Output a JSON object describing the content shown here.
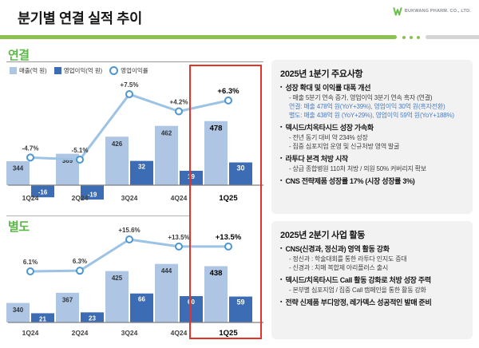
{
  "header": {
    "title": "분기별 연결 실적 추이",
    "logo_text": "BUKWANG PHARM. CO., LTD."
  },
  "colors": {
    "accent_green": "#8cc152",
    "section_green": "#5cb848",
    "revenue_bar": "#aec6e4",
    "profit_bar": "#3c6cb4",
    "margin_line": "#9cc2e5",
    "marker_ring": "#4d96d2",
    "highlight_red": "#e5332a",
    "panel_bg": "#f2f2f2",
    "blue_text": "#4a7cc7"
  },
  "legend": {
    "revenue": "매출(억 원)",
    "profit": "영업이익(억 원)",
    "margin": "영업이익률"
  },
  "chart_data": [
    {
      "type": "bar+line",
      "section_label": "연결",
      "categories": [
        "1Q24",
        "2Q24",
        "3Q24",
        "4Q24",
        "1Q25"
      ],
      "series": [
        {
          "name": "매출(억 원)",
          "type": "bar",
          "values": [
            344,
            369,
            426,
            462,
            478
          ]
        },
        {
          "name": "영업이익(억 원)",
          "type": "bar",
          "values": [
            -16,
            -19,
            32,
            19,
            30
          ]
        },
        {
          "name": "영업이익률",
          "type": "line",
          "values": [
            -4.7,
            -5.1,
            7.5,
            4.2,
            6.3
          ],
          "labels": [
            "-4.7%",
            "-5.1%",
            "+7.5%",
            "+4.2%",
            "+6.3%"
          ]
        }
      ],
      "highlight_category": "1Q25",
      "grid": false,
      "legend_position": "top-left"
    },
    {
      "type": "bar+line",
      "section_label": "별도",
      "categories": [
        "1Q24",
        "2Q24",
        "3Q24",
        "4Q24",
        "1Q25"
      ],
      "series": [
        {
          "name": "매출(억 원)",
          "type": "bar",
          "values": [
            340,
            367,
            425,
            444,
            438
          ]
        },
        {
          "name": "영업이익(억 원)",
          "type": "bar",
          "values": [
            21,
            23,
            66,
            60,
            59
          ]
        },
        {
          "name": "영업이익률",
          "type": "line",
          "values": [
            6.1,
            6.3,
            15.6,
            13.5,
            13.5
          ],
          "labels": [
            "6.1%",
            "6.3%",
            "+15.6%",
            "+13.5%",
            "+13.5%"
          ]
        }
      ],
      "highlight_category": "1Q25",
      "grid": false,
      "legend_position": "none"
    }
  ],
  "panels": [
    {
      "title": "2025년 1분기 주요사항",
      "bullets": [
        {
          "head": "성장 확대 및 이익률 대폭 개선",
          "subs": [
            {
              "text": "- 매출 5분기 연속 증가, 영업이익 3분기 연속 흑자 (연결)",
              "style": "normal"
            },
            {
              "text": "연결: 매출 478억 원(YoY+39%), 영업이익 30억 원(흑자전환)",
              "style": "blue"
            },
            {
              "text": "별도: 매출 438억 원 (YoY+29%), 영업이익 59억 원(YoY+188%)",
              "style": "blue"
            }
          ]
        },
        {
          "head": "덱시드/치옥타시드 성장 가속화",
          "subs": [
            {
              "text": "- 전년 동기 대비 약 234% 성장",
              "style": "normal"
            },
            {
              "text": "- 집중 심포지엄 운영 및 신규처방 영역 발굴",
              "style": "normal"
            }
          ]
        },
        {
          "head": "라투다 본격 처방 시작",
          "subs": [
            {
              "text": "- 상급 종합병원 110처 처방 / 의원 50% 커버리지 확보",
              "style": "normal"
            }
          ]
        },
        {
          "head": "CNS 전략제품 성장률 17% (시장 성장률 3%)",
          "subs": []
        }
      ]
    },
    {
      "title": "2025년 2분기 사업 활동",
      "bullets": [
        {
          "head": "CNS(신경과, 정신과) 영역 활동 강화",
          "subs": [
            {
              "text": "- 정신과 : 학술대회를 통한 라투다 인지도 증대",
              "style": "normal"
            },
            {
              "text": "- 신경과 : 치매 복합제 아리플러스 출시",
              "style": "normal"
            }
          ]
        },
        {
          "head": "덱시드/치옥타시드 Call 활동 강화로 처방 성장 주력",
          "subs": [
            {
              "text": "- 본부별 심포지엄 / 집중 Call 캠페인을 통한 활동 강화",
              "style": "normal"
            }
          ]
        },
        {
          "head": "전략 신제품 부디앙정, 레가덱스 성공적인 발매 준비",
          "subs": []
        }
      ]
    }
  ]
}
